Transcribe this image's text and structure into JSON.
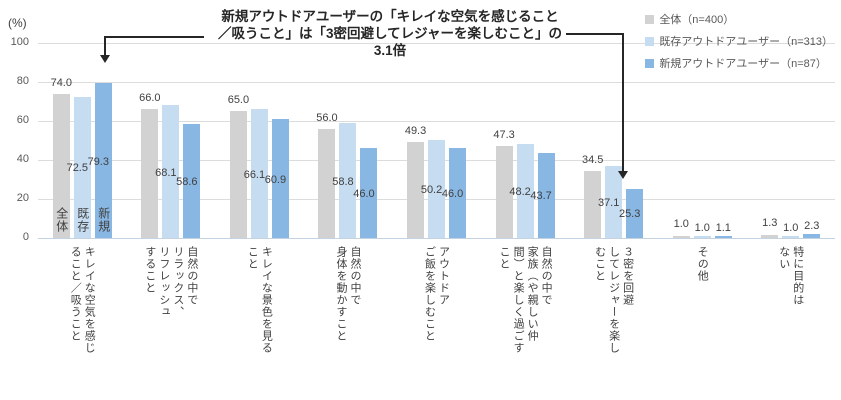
{
  "annotation": {
    "lines": [
      "新規アウトドアユーザーの「キレイな空気を感じること",
      "／吸うこと」は「3密回避してレジャーを楽しむこと」の",
      "3.1倍"
    ]
  },
  "chart_data": {
    "type": "bar",
    "unit_label": "(%)",
    "ylim": [
      0,
      100
    ],
    "yticks": [
      0,
      20,
      40,
      60,
      80,
      100
    ],
    "grid": true,
    "legend_position": "top-right",
    "categories": [
      "キレイな空気を感じ\nること／吸うこと",
      "自然の中で\nリラックス、\nリフレッシュ\nすること",
      "キレイな景色を見る\nこと",
      "自然の中で\n身体を動かすこと",
      "アウトドア\nご飯を楽しむこと",
      "自然の中で\n家族（や親しい仲\n間）と楽しく過ごす\nこと",
      "３密を回避\nしてレジャーを楽し\nむこと",
      "その他",
      "特に目的は\nない"
    ],
    "series": [
      {
        "name": "全体（n=400）",
        "color": "#D2D2D2",
        "values": [
          74.0,
          66.0,
          65.0,
          56.0,
          49.3,
          47.3,
          34.5,
          1.0,
          1.3
        ]
      },
      {
        "name": "既存アウトドアユーザー（n=313）",
        "color": "#C5DCF1",
        "values": [
          72.5,
          68.1,
          66.1,
          58.8,
          50.2,
          48.2,
          37.1,
          1.0,
          1.0
        ]
      },
      {
        "name": "新規アウトドアユーザー（n=87）",
        "color": "#89B7E3",
        "values": [
          79.3,
          58.6,
          60.9,
          46.0,
          46.0,
          43.7,
          25.3,
          1.1,
          2.3
        ]
      }
    ],
    "first_group_bar_labels": [
      "全体",
      "既存",
      "新規"
    ]
  }
}
